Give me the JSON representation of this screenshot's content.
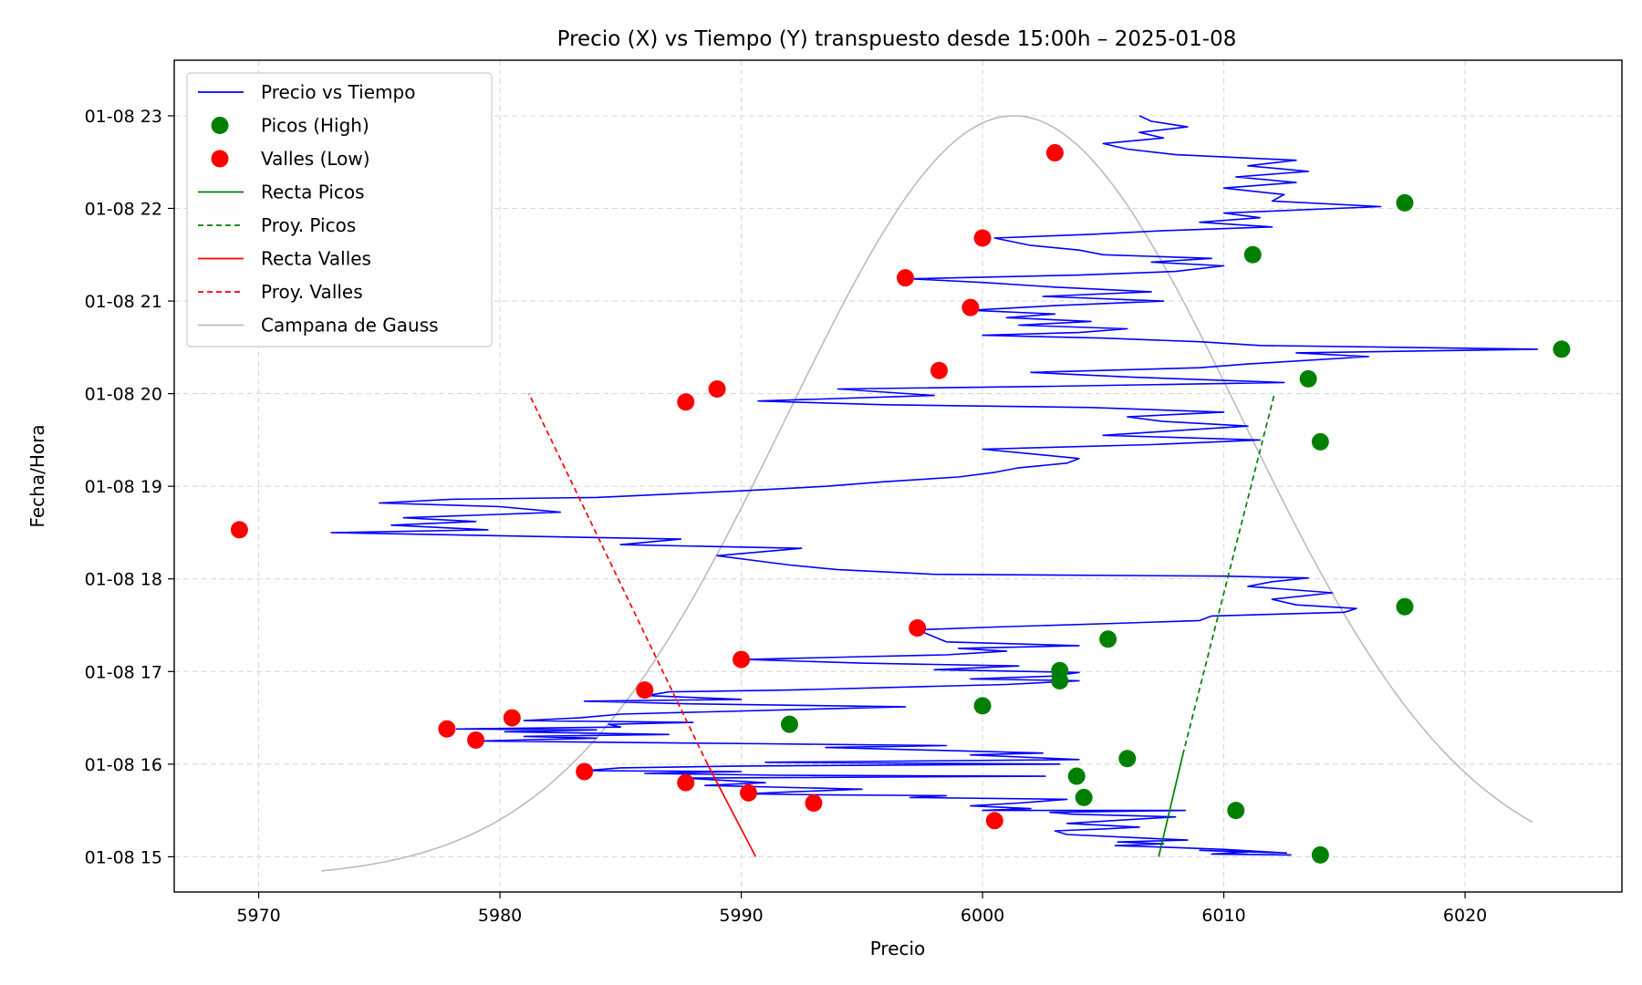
{
  "chart_data": {
    "type": "line",
    "title": "Precio (X) vs Tiempo (Y) transpuesto desde 15:00h – 2025-01-08",
    "xlabel": "Precio",
    "ylabel": "Fecha/Hora",
    "xlim": [
      5966.5,
      6026.5
    ],
    "ylim": [
      14.62,
      23.6
    ],
    "x_ticks": [
      5970,
      5980,
      5990,
      6000,
      6010,
      6020
    ],
    "y_ticks": [
      {
        "value": 15,
        "label": "01-08 15"
      },
      {
        "value": 16,
        "label": "01-08 16"
      },
      {
        "value": 17,
        "label": "01-08 17"
      },
      {
        "value": 18,
        "label": "01-08 18"
      },
      {
        "value": 19,
        "label": "01-08 19"
      },
      {
        "value": 20,
        "label": "01-08 20"
      },
      {
        "value": 21,
        "label": "01-08 21"
      },
      {
        "value": 22,
        "label": "01-08 22"
      },
      {
        "value": 23,
        "label": "01-08 23"
      }
    ],
    "grid": true,
    "legend_position": "top-left",
    "legend": [
      {
        "label": "Precio vs Tiempo",
        "kind": "line",
        "color": "#0000ff",
        "dash": false
      },
      {
        "label": "Picos (High)",
        "kind": "marker",
        "color": "#008000"
      },
      {
        "label": "Valles (Low)",
        "kind": "marker",
        "color": "#ff0000"
      },
      {
        "label": "Recta Picos",
        "kind": "line",
        "color": "#008000",
        "dash": false
      },
      {
        "label": "Proy. Picos",
        "kind": "line",
        "color": "#008000",
        "dash": true
      },
      {
        "label": "Recta Valles",
        "kind": "line",
        "color": "#ff0000",
        "dash": false
      },
      {
        "label": "Proy. Valles",
        "kind": "line",
        "color": "#ff0000",
        "dash": true
      },
      {
        "label": "Campana de Gauss",
        "kind": "line",
        "color": "#bbbbbb",
        "dash": false
      }
    ],
    "price_series": {
      "name": "Precio vs Tiempo",
      "color": "#0000ff",
      "points": [
        [
          6012.8,
          15.02
        ],
        [
          6009.5,
          15.03
        ],
        [
          6011.0,
          15.05
        ],
        [
          6009.0,
          15.07
        ],
        [
          6012.6,
          15.04
        ],
        [
          6010.0,
          15.08
        ],
        [
          6008.0,
          15.1
        ],
        [
          6005.5,
          15.12
        ],
        [
          6007.5,
          15.14
        ],
        [
          6005.6,
          15.16
        ],
        [
          6008.5,
          15.18
        ],
        [
          6006.0,
          15.21
        ],
        [
          6003.5,
          15.24
        ],
        [
          6003.0,
          15.28
        ],
        [
          6005.0,
          15.3
        ],
        [
          6006.5,
          15.32
        ],
        [
          6003.5,
          15.36
        ],
        [
          6006.0,
          15.4
        ],
        [
          6008.0,
          15.43
        ],
        [
          6003.7,
          15.46
        ],
        [
          6002.8,
          15.48
        ],
        [
          6008.4,
          15.5
        ],
        [
          6000.0,
          15.5
        ],
        [
          6002.0,
          15.52
        ],
        [
          5999.5,
          15.55
        ],
        [
          6001.5,
          15.58
        ],
        [
          6003.5,
          15.62
        ],
        [
          5997.0,
          15.64
        ],
        [
          5998.5,
          15.66
        ],
        [
          5993.0,
          15.67
        ],
        [
          5990.2,
          15.68
        ],
        [
          5992.0,
          15.7
        ],
        [
          5995.0,
          15.73
        ],
        [
          5988.5,
          15.77
        ],
        [
          5991.0,
          15.8
        ],
        [
          5987.6,
          15.85
        ],
        [
          6002.6,
          15.87
        ],
        [
          5991.5,
          15.88
        ],
        [
          5986.0,
          15.9
        ],
        [
          5990.0,
          15.92
        ],
        [
          5983.5,
          15.93
        ],
        [
          5985.0,
          15.96
        ],
        [
          5990.0,
          15.98
        ],
        [
          6003.2,
          16.0
        ],
        [
          5991.0,
          16.02
        ],
        [
          6004.0,
          16.05
        ],
        [
          5999.5,
          16.1
        ],
        [
          6002.5,
          16.12
        ],
        [
          5998.0,
          16.15
        ],
        [
          5993.5,
          16.18
        ],
        [
          5998.5,
          16.2
        ],
        [
          5991.0,
          16.22
        ],
        [
          5979.0,
          16.25
        ],
        [
          5984.0,
          16.28
        ],
        [
          5981.0,
          16.3
        ],
        [
          5987.0,
          16.32
        ],
        [
          5980.2,
          16.35
        ],
        [
          5984.0,
          16.37
        ],
        [
          5978.2,
          16.38
        ],
        [
          5985.0,
          16.4
        ],
        [
          5984.5,
          16.43
        ],
        [
          5988.0,
          16.45
        ],
        [
          5981.0,
          16.47
        ],
        [
          5983.3,
          16.5
        ],
        [
          5985.0,
          16.54
        ],
        [
          5996.8,
          16.62
        ],
        [
          5988.0,
          16.65
        ],
        [
          5983.5,
          16.68
        ],
        [
          5990.0,
          16.7
        ],
        [
          5986.1,
          16.74
        ],
        [
          5987.0,
          16.78
        ],
        [
          5992.0,
          16.8
        ],
        [
          5998.0,
          16.84
        ],
        [
          6001.0,
          16.86
        ],
        [
          6004.0,
          16.9
        ],
        [
          5999.5,
          16.92
        ],
        [
          6002.8,
          16.95
        ],
        [
          6004.0,
          16.99
        ],
        [
          5998.0,
          17.02
        ],
        [
          6001.5,
          17.06
        ],
        [
          5995.0,
          17.09
        ],
        [
          5990.2,
          17.13
        ],
        [
          5995.0,
          17.16
        ],
        [
          5998.5,
          17.18
        ],
        [
          6001.0,
          17.22
        ],
        [
          5999.0,
          17.25
        ],
        [
          6004.0,
          17.28
        ],
        [
          5998.5,
          17.32
        ],
        [
          5997.3,
          17.45
        ],
        [
          6000.5,
          17.48
        ],
        [
          6005.5,
          17.52
        ],
        [
          6009.0,
          17.55
        ],
        [
          6009.5,
          17.6
        ],
        [
          6015.0,
          17.64
        ],
        [
          6015.5,
          17.68
        ],
        [
          6013.0,
          17.72
        ],
        [
          6012.0,
          17.78
        ],
        [
          6014.5,
          17.85
        ],
        [
          6011.0,
          17.92
        ],
        [
          6012.0,
          17.97
        ],
        [
          6013.5,
          18.01
        ],
        [
          6010.0,
          18.03
        ],
        [
          5998.0,
          18.05
        ],
        [
          5994.0,
          18.1
        ],
        [
          5992.0,
          18.15
        ],
        [
          5989.0,
          18.25
        ],
        [
          5992.5,
          18.33
        ],
        [
          5985.0,
          18.37
        ],
        [
          5987.5,
          18.43
        ],
        [
          5973.0,
          18.5
        ],
        [
          5979.5,
          18.53
        ],
        [
          5975.5,
          18.58
        ],
        [
          5979.0,
          18.62
        ],
        [
          5976.0,
          18.66
        ],
        [
          5982.5,
          18.72
        ],
        [
          5980.0,
          18.78
        ],
        [
          5975.0,
          18.82
        ],
        [
          5978.0,
          18.86
        ],
        [
          5984.0,
          18.88
        ],
        [
          5990.0,
          18.95
        ],
        [
          5993.5,
          19.0
        ],
        [
          5996.0,
          19.05
        ],
        [
          5999.0,
          19.1
        ],
        [
          6000.5,
          19.15
        ],
        [
          6001.5,
          19.2
        ],
        [
          6003.5,
          19.25
        ],
        [
          6004.0,
          19.3
        ],
        [
          6002.0,
          19.35
        ],
        [
          6000.0,
          19.4
        ],
        [
          6007.0,
          19.45
        ],
        [
          6011.5,
          19.5
        ],
        [
          6005.0,
          19.55
        ],
        [
          6008.0,
          19.6
        ],
        [
          6011.0,
          19.65
        ],
        [
          6007.5,
          19.7
        ],
        [
          6006.0,
          19.75
        ],
        [
          6010.0,
          19.8
        ],
        [
          6004.5,
          19.85
        ],
        [
          5996.0,
          19.88
        ],
        [
          5990.7,
          19.92
        ],
        [
          5998.0,
          19.98
        ],
        [
          5994.0,
          20.05
        ],
        [
          6003.0,
          20.08
        ],
        [
          6012.5,
          20.12
        ],
        [
          6006.0,
          20.18
        ],
        [
          6002.0,
          20.23
        ],
        [
          6009.0,
          20.28
        ],
        [
          6011.0,
          20.32
        ],
        [
          6016.0,
          20.4
        ],
        [
          6013.0,
          20.44
        ],
        [
          6023.0,
          20.48
        ],
        [
          6011.5,
          20.52
        ],
        [
          6009.0,
          20.56
        ],
        [
          6005.0,
          20.6
        ],
        [
          6000.0,
          20.63
        ],
        [
          6004.0,
          20.66
        ],
        [
          6006.0,
          20.7
        ],
        [
          6001.5,
          20.74
        ],
        [
          6004.5,
          20.78
        ],
        [
          6001.0,
          20.82
        ],
        [
          6003.0,
          20.86
        ],
        [
          5999.5,
          20.9
        ],
        [
          6003.0,
          20.95
        ],
        [
          6007.5,
          21.0
        ],
        [
          6002.5,
          21.05
        ],
        [
          6007.0,
          21.1
        ],
        [
          6003.0,
          21.15
        ],
        [
          6000.0,
          21.2
        ],
        [
          5997.0,
          21.24
        ],
        [
          6004.0,
          21.28
        ],
        [
          6008.0,
          21.32
        ],
        [
          6010.0,
          21.38
        ],
        [
          6007.0,
          21.42
        ],
        [
          6009.5,
          21.46
        ],
        [
          6005.0,
          21.5
        ],
        [
          6004.0,
          21.55
        ],
        [
          6002.0,
          21.6
        ],
        [
          6000.5,
          21.68
        ],
        [
          6004.5,
          21.72
        ],
        [
          6007.5,
          21.76
        ],
        [
          6012.0,
          21.8
        ],
        [
          6009.0,
          21.85
        ],
        [
          6011.5,
          21.9
        ],
        [
          6010.0,
          21.95
        ],
        [
          6016.5,
          22.02
        ],
        [
          6012.0,
          22.08
        ],
        [
          6012.5,
          22.15
        ],
        [
          6010.0,
          22.22
        ],
        [
          6013.0,
          22.28
        ],
        [
          6010.5,
          22.34
        ],
        [
          6013.5,
          22.4
        ],
        [
          6011.0,
          22.46
        ],
        [
          6013.0,
          22.52
        ],
        [
          6008.0,
          22.58
        ],
        [
          6006.0,
          22.64
        ],
        [
          6005.0,
          22.7
        ],
        [
          6007.5,
          22.76
        ],
        [
          6006.5,
          22.82
        ],
        [
          6008.5,
          22.88
        ],
        [
          6007.0,
          22.94
        ],
        [
          6006.5,
          23.0
        ]
      ]
    },
    "peaks": {
      "name": "Picos (High)",
      "color": "#008000",
      "points": [
        [
          6014.0,
          15.02
        ],
        [
          6010.5,
          15.5
        ],
        [
          6004.2,
          15.64
        ],
        [
          6003.9,
          15.87
        ],
        [
          6006.0,
          16.06
        ],
        [
          5992.0,
          16.43
        ],
        [
          6000.0,
          16.63
        ],
        [
          6003.2,
          16.9
        ],
        [
          6003.2,
          17.01
        ],
        [
          6005.2,
          17.35
        ],
        [
          6017.5,
          17.7
        ],
        [
          6014.0,
          19.48
        ],
        [
          6013.5,
          20.16
        ],
        [
          6024.0,
          20.48
        ],
        [
          6011.2,
          21.5
        ],
        [
          6017.5,
          22.06
        ]
      ]
    },
    "valleys": {
      "name": "Valles (Low)",
      "color": "#ff0000",
      "points": [
        [
          6000.5,
          15.39
        ],
        [
          5993.0,
          15.58
        ],
        [
          5990.3,
          15.69
        ],
        [
          5987.7,
          15.8
        ],
        [
          5983.5,
          15.92
        ],
        [
          5979.0,
          16.26
        ],
        [
          5977.8,
          16.38
        ],
        [
          5980.5,
          16.5
        ],
        [
          5986.0,
          16.8
        ],
        [
          5990.0,
          17.13
        ],
        [
          5997.3,
          17.47
        ],
        [
          5969.2,
          18.53
        ],
        [
          5987.7,
          19.91
        ],
        [
          5989.0,
          20.05
        ],
        [
          5998.2,
          20.25
        ],
        [
          5999.5,
          20.93
        ],
        [
          5996.8,
          21.25
        ],
        [
          6000.0,
          21.68
        ],
        [
          6003.0,
          22.6
        ]
      ]
    },
    "peak_trend": {
      "name": "Recta Picos",
      "color": "#008000",
      "points": [
        [
          6007.3,
          15.0
        ],
        [
          6008.3,
          16.1
        ]
      ]
    },
    "peak_projection": {
      "name": "Proy. Picos",
      "color": "#008000",
      "points": [
        [
          6008.3,
          16.1
        ],
        [
          6012.1,
          20.0
        ]
      ]
    },
    "valley_trend": {
      "name": "Recta Valles",
      "color": "#ff0000",
      "points": [
        [
          5990.6,
          15.0
        ],
        [
          5988.6,
          16.0
        ]
      ]
    },
    "valley_projection": {
      "name": "Proy. Valles",
      "color": "#ff0000",
      "points": [
        [
          5988.6,
          16.0
        ],
        [
          5981.2,
          20.0
        ]
      ]
    },
    "gauss_curve": {
      "name": "Campana de Gauss",
      "color": "#bbbbbb",
      "mean": 6001.3,
      "sigma": 9.4,
      "y_base": 14.77,
      "y_peak": 23.0,
      "x_range": [
        5972.6,
        6022.8
      ]
    }
  }
}
